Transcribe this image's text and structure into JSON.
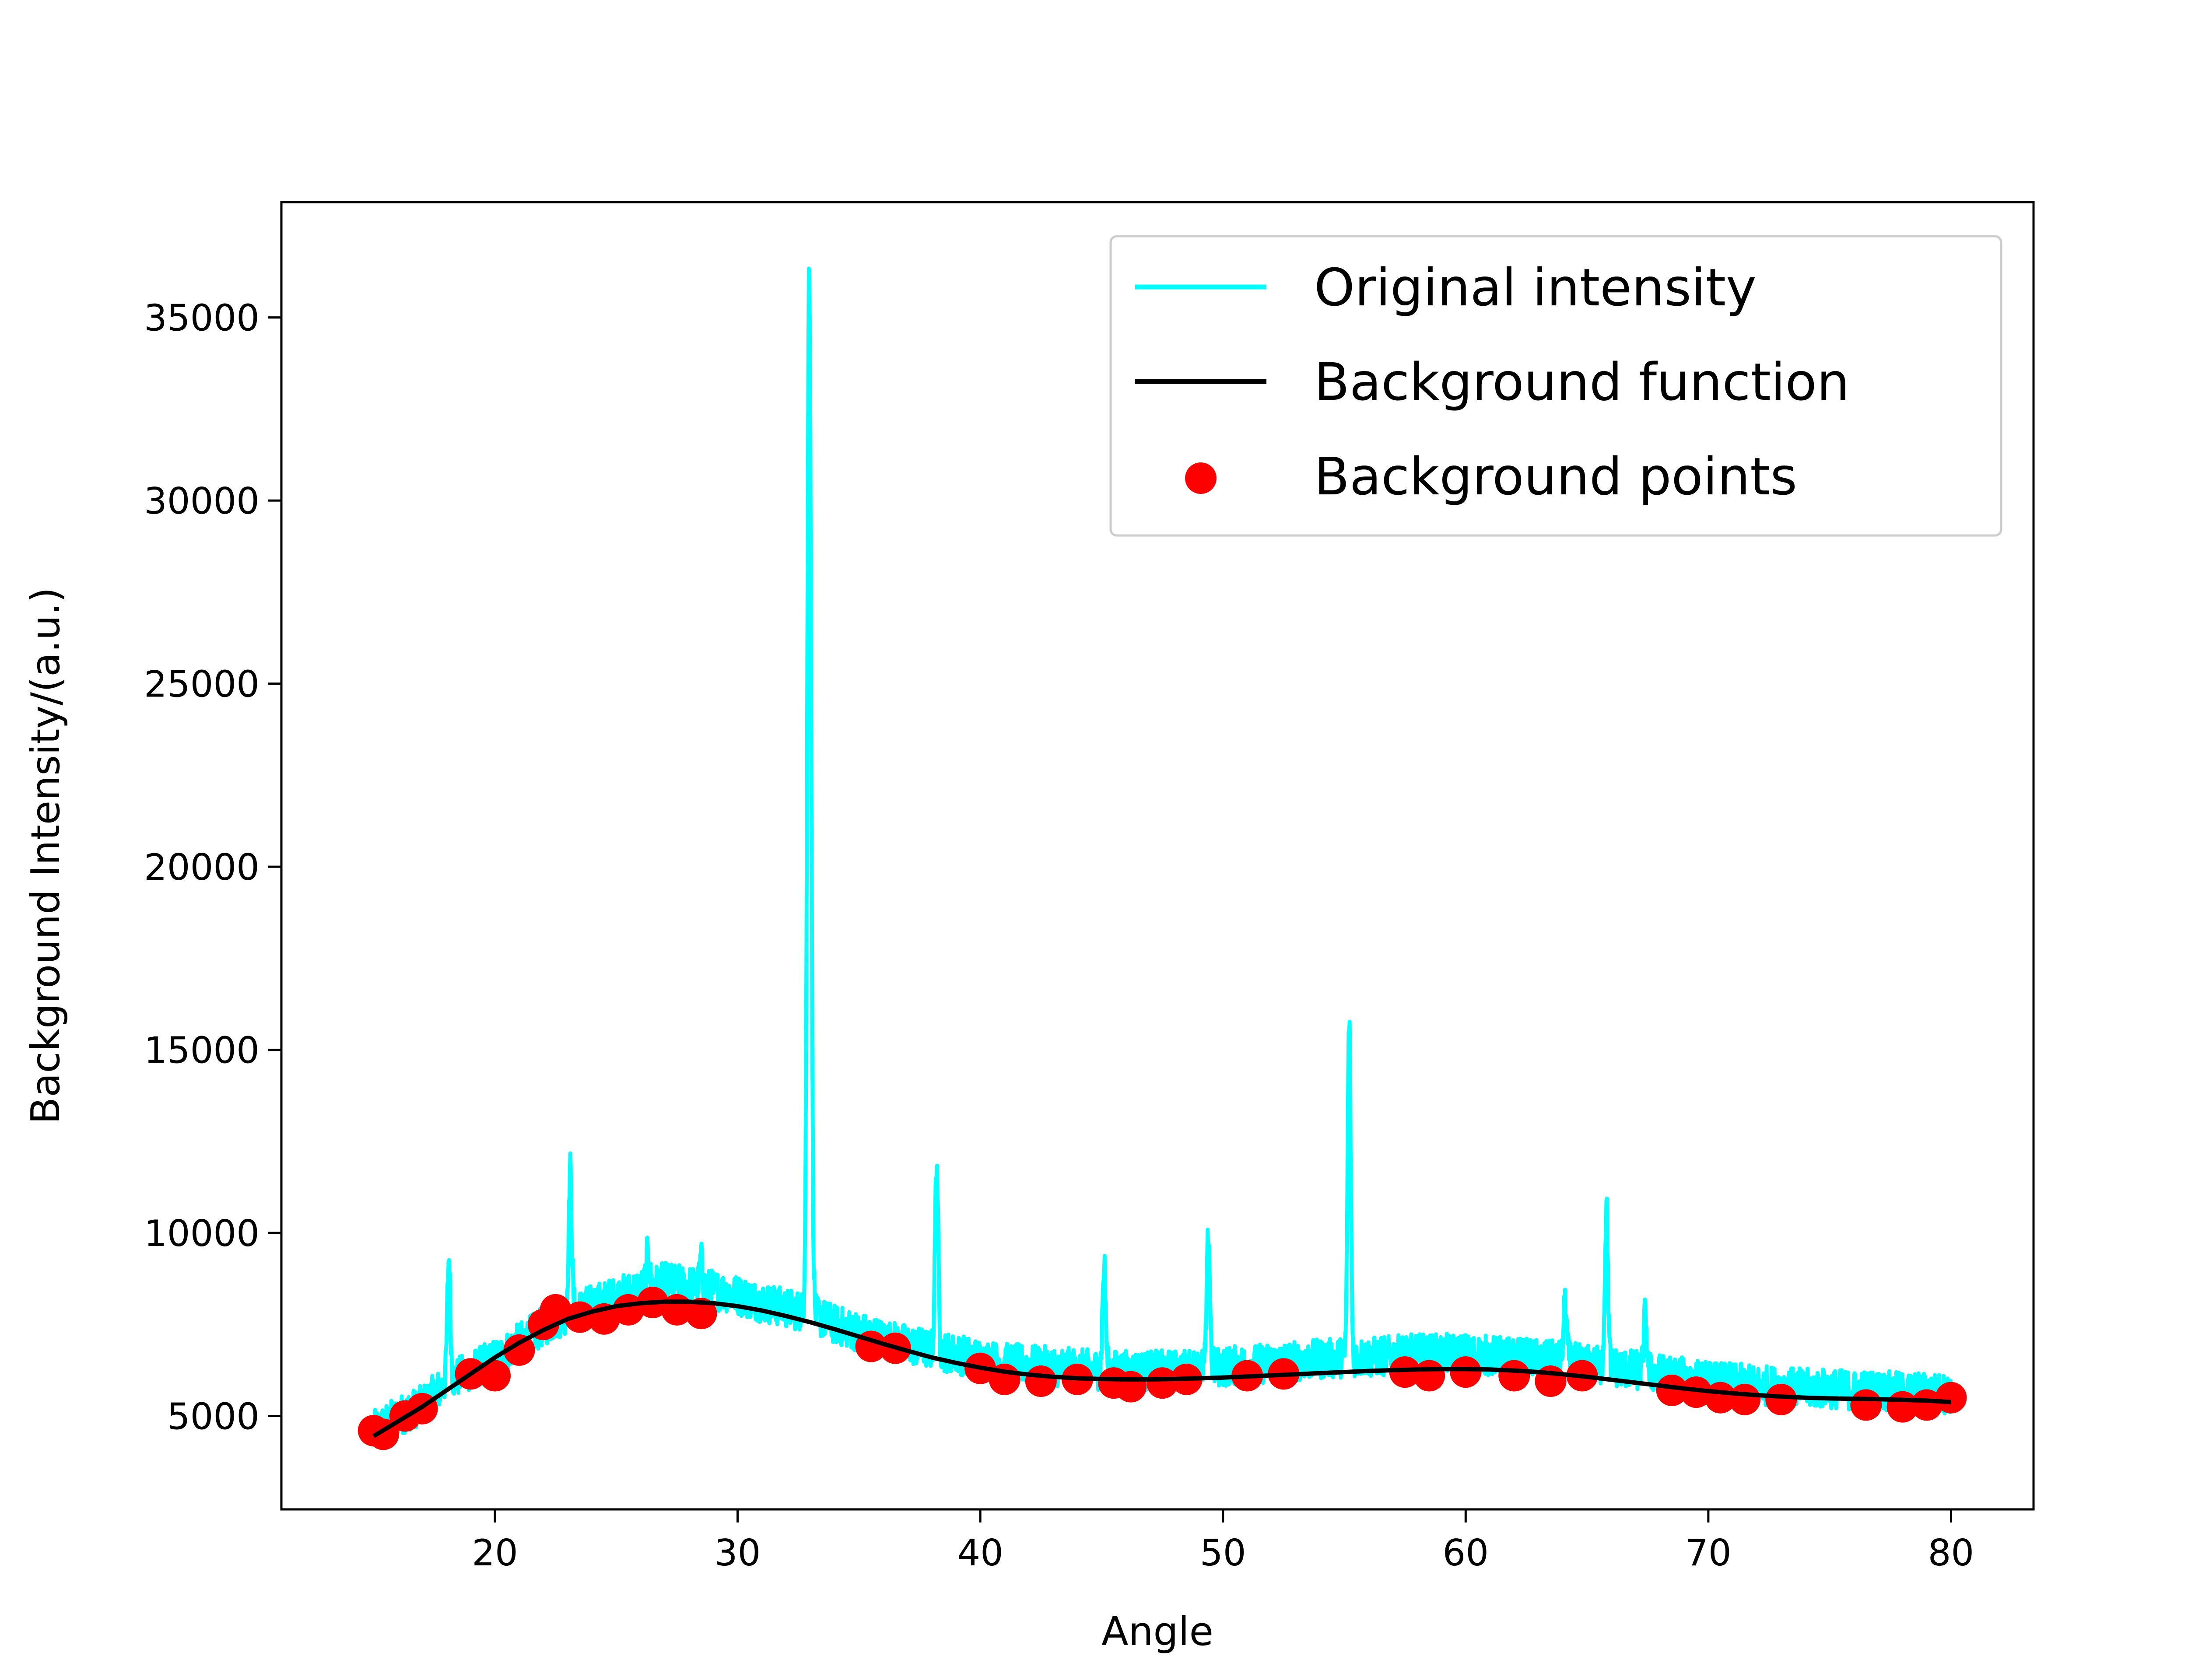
{
  "chart_data": {
    "type": "line",
    "title": "",
    "xlabel": "Angle",
    "ylabel": "Background Intensity/(a.u.)",
    "xlim": [
      11.2,
      83.4
    ],
    "ylim": [
      2450,
      38150
    ],
    "x_ticks": [
      20,
      30,
      40,
      50,
      60,
      70,
      80
    ],
    "y_ticks": [
      5000,
      10000,
      15000,
      20000,
      25000,
      30000,
      35000
    ],
    "grid": false,
    "legend": {
      "position": "top-right"
    },
    "series": [
      {
        "name": "Original intensity",
        "kind": "line",
        "color": "#00ffff",
        "baseline": [
          [
            15.0,
            4600
          ],
          [
            16.0,
            5000
          ],
          [
            17.0,
            5300
          ],
          [
            18.0,
            5900
          ],
          [
            19.0,
            6250
          ],
          [
            20.0,
            6550
          ],
          [
            21.0,
            7000
          ],
          [
            22.0,
            7450
          ],
          [
            23.0,
            7800
          ],
          [
            24.0,
            8050
          ],
          [
            25.0,
            8250
          ],
          [
            26.0,
            8500
          ],
          [
            27.0,
            8650
          ],
          [
            28.0,
            8550
          ],
          [
            29.0,
            8450
          ],
          [
            30.0,
            8300
          ],
          [
            31.0,
            8100
          ],
          [
            32.0,
            7950
          ],
          [
            33.0,
            7800
          ],
          [
            34.0,
            7500
          ],
          [
            35.0,
            7300
          ],
          [
            36.0,
            7100
          ],
          [
            37.0,
            6950
          ],
          [
            38.0,
            6800
          ],
          [
            39.0,
            6700
          ],
          [
            40.0,
            6550
          ],
          [
            41.0,
            6450
          ],
          [
            42.0,
            6400
          ],
          [
            43.0,
            6350
          ],
          [
            44.0,
            6300
          ],
          [
            45.0,
            6250
          ],
          [
            46.0,
            6250
          ],
          [
            47.0,
            6250
          ],
          [
            48.0,
            6250
          ],
          [
            49.0,
            6300
          ],
          [
            50.0,
            6350
          ],
          [
            51.0,
            6400
          ],
          [
            52.0,
            6450
          ],
          [
            53.0,
            6500
          ],
          [
            54.0,
            6550
          ],
          [
            55.0,
            6600
          ],
          [
            56.0,
            6600
          ],
          [
            57.0,
            6650
          ],
          [
            58.0,
            6700
          ],
          [
            59.0,
            6700
          ],
          [
            60.0,
            6700
          ],
          [
            61.0,
            6650
          ],
          [
            62.0,
            6600
          ],
          [
            63.0,
            6550
          ],
          [
            64.0,
            6500
          ],
          [
            65.0,
            6400
          ],
          [
            66.0,
            6350
          ],
          [
            67.0,
            6250
          ],
          [
            68.0,
            6150
          ],
          [
            69.0,
            6050
          ],
          [
            70.0,
            5950
          ],
          [
            71.0,
            5900
          ],
          [
            72.0,
            5850
          ],
          [
            73.0,
            5800
          ],
          [
            74.0,
            5750
          ],
          [
            75.0,
            5750
          ],
          [
            76.0,
            5700
          ],
          [
            77.0,
            5700
          ],
          [
            78.0,
            5650
          ],
          [
            79.0,
            5650
          ],
          [
            80.0,
            5600
          ]
        ],
        "peaks": [
          {
            "x": 18.1,
            "y": 9300
          },
          {
            "x": 23.1,
            "y": 11700
          },
          {
            "x": 26.3,
            "y": 9400
          },
          {
            "x": 28.5,
            "y": 9200
          },
          {
            "x": 32.95,
            "y": 36700
          },
          {
            "x": 38.2,
            "y": 12000
          },
          {
            "x": 45.1,
            "y": 9100
          },
          {
            "x": 49.4,
            "y": 10000
          },
          {
            "x": 55.2,
            "y": 15800
          },
          {
            "x": 64.1,
            "y": 8100
          },
          {
            "x": 65.8,
            "y": 10700
          },
          {
            "x": 67.4,
            "y": 7700
          }
        ]
      },
      {
        "name": "Background function",
        "kind": "line",
        "color": "#000000",
        "points": [
          [
            15.0,
            4450
          ],
          [
            16.0,
            4850
          ],
          [
            17.0,
            5250
          ],
          [
            18.0,
            5700
          ],
          [
            19.0,
            6150
          ],
          [
            20.0,
            6600
          ],
          [
            21.0,
            7000
          ],
          [
            22.0,
            7350
          ],
          [
            23.0,
            7650
          ],
          [
            24.0,
            7850
          ],
          [
            25.0,
            8000
          ],
          [
            26.0,
            8080
          ],
          [
            27.0,
            8120
          ],
          [
            28.0,
            8120
          ],
          [
            29.0,
            8080
          ],
          [
            30.0,
            8000
          ],
          [
            31.0,
            7880
          ],
          [
            32.0,
            7730
          ],
          [
            33.0,
            7560
          ],
          [
            34.0,
            7370
          ],
          [
            35.0,
            7170
          ],
          [
            36.0,
            6970
          ],
          [
            37.0,
            6780
          ],
          [
            38.0,
            6600
          ],
          [
            39.0,
            6450
          ],
          [
            40.0,
            6320
          ],
          [
            41.0,
            6210
          ],
          [
            42.0,
            6130
          ],
          [
            43.0,
            6070
          ],
          [
            44.0,
            6030
          ],
          [
            45.0,
            6010
          ],
          [
            46.0,
            6000
          ],
          [
            47.0,
            6000
          ],
          [
            48.0,
            6010
          ],
          [
            49.0,
            6030
          ],
          [
            50.0,
            6050
          ],
          [
            51.0,
            6080
          ],
          [
            52.0,
            6110
          ],
          [
            53.0,
            6140
          ],
          [
            54.0,
            6170
          ],
          [
            55.0,
            6200
          ],
          [
            56.0,
            6230
          ],
          [
            57.0,
            6250
          ],
          [
            58.0,
            6270
          ],
          [
            59.0,
            6280
          ],
          [
            60.0,
            6280
          ],
          [
            61.0,
            6270
          ],
          [
            62.0,
            6240
          ],
          [
            63.0,
            6200
          ],
          [
            64.0,
            6140
          ],
          [
            65.0,
            6070
          ],
          [
            66.0,
            5990
          ],
          [
            67.0,
            5910
          ],
          [
            68.0,
            5830
          ],
          [
            69.0,
            5750
          ],
          [
            70.0,
            5680
          ],
          [
            71.0,
            5620
          ],
          [
            72.0,
            5570
          ],
          [
            73.0,
            5530
          ],
          [
            74.0,
            5500
          ],
          [
            75.0,
            5480
          ],
          [
            76.0,
            5470
          ],
          [
            77.0,
            5460
          ],
          [
            78.0,
            5440
          ],
          [
            79.0,
            5420
          ],
          [
            80.0,
            5380
          ]
        ]
      },
      {
        "name": "Background points",
        "kind": "scatter",
        "color": "#ff0000",
        "points": [
          [
            15.0,
            4600
          ],
          [
            15.4,
            4500
          ],
          [
            16.3,
            5000
          ],
          [
            17.0,
            5200
          ],
          [
            19.0,
            6150
          ],
          [
            20.0,
            6100
          ],
          [
            21.0,
            6800
          ],
          [
            22.0,
            7500
          ],
          [
            22.5,
            7900
          ],
          [
            23.5,
            7700
          ],
          [
            24.5,
            7650
          ],
          [
            25.5,
            7900
          ],
          [
            26.5,
            8100
          ],
          [
            27.5,
            7900
          ],
          [
            28.5,
            7800
          ],
          [
            35.5,
            6900
          ],
          [
            36.5,
            6850
          ],
          [
            40.0,
            6300
          ],
          [
            41.0,
            6000
          ],
          [
            42.5,
            5950
          ],
          [
            44.0,
            6000
          ],
          [
            45.5,
            5900
          ],
          [
            46.2,
            5800
          ],
          [
            47.5,
            5900
          ],
          [
            48.5,
            6000
          ],
          [
            51.0,
            6100
          ],
          [
            52.5,
            6150
          ],
          [
            57.5,
            6200
          ],
          [
            58.5,
            6100
          ],
          [
            60.0,
            6200
          ],
          [
            62.0,
            6100
          ],
          [
            63.5,
            5950
          ],
          [
            64.8,
            6100
          ],
          [
            68.5,
            5700
          ],
          [
            69.5,
            5650
          ],
          [
            70.5,
            5500
          ],
          [
            71.5,
            5450
          ],
          [
            73.0,
            5450
          ],
          [
            76.5,
            5300
          ],
          [
            78.0,
            5250
          ],
          [
            79.0,
            5300
          ],
          [
            80.0,
            5500
          ]
        ]
      }
    ]
  }
}
